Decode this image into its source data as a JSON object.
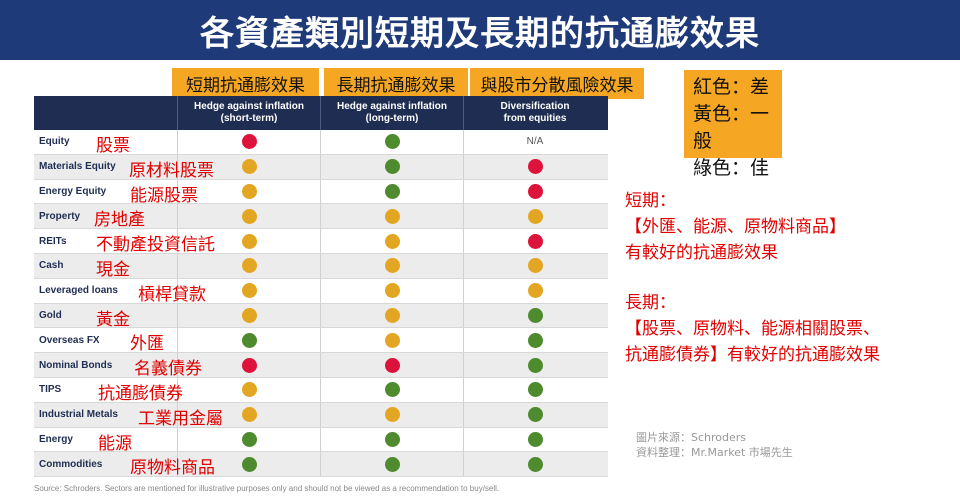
{
  "title": "各資產類別短期及長期的抗通膨效果",
  "top_labels": {
    "short": "短期抗通膨效果",
    "long": "長期抗通膨效果",
    "diversify": "與股市分散風險效果"
  },
  "legend": {
    "red": "紅色：差",
    "yellow": "黃色：一般",
    "green": "綠色：佳"
  },
  "colors": {
    "red": "#dc143c",
    "amber": "#e3a623",
    "green": "#4e8a2e",
    "header": "#1f2d52",
    "title_bg": "#1f3a78",
    "label_bg": "#f5a623"
  },
  "table": {
    "headers": [
      "",
      "Hedge against inflation (short-term)",
      "Hedge against inflation (long-term)",
      "Diversification from equities"
    ],
    "header_lines": [
      [
        "Hedge against inflation",
        "(short-term)"
      ],
      [
        "Hedge against inflation",
        "(long-term)"
      ],
      [
        "Diversification",
        "from equities"
      ]
    ],
    "rows": [
      {
        "en": "Equity",
        "zh": "股票",
        "short": "red",
        "long": "green",
        "div": "N/A"
      },
      {
        "en": "Materials Equity",
        "zh": "原材料股票",
        "short": "amber",
        "long": "green",
        "div": "red"
      },
      {
        "en": "Energy Equity",
        "zh": "能源股票",
        "short": "amber",
        "long": "green",
        "div": "red"
      },
      {
        "en": "Property",
        "zh": "房地產",
        "short": "amber",
        "long": "amber",
        "div": "amber"
      },
      {
        "en": "REITs",
        "zh": "不動產投資信託",
        "short": "amber",
        "long": "amber",
        "div": "red"
      },
      {
        "en": "Cash",
        "zh": "現金",
        "short": "amber",
        "long": "amber",
        "div": "amber"
      },
      {
        "en": "Leveraged loans",
        "zh": "槓桿貸款",
        "short": "amber",
        "long": "amber",
        "div": "amber"
      },
      {
        "en": "Gold",
        "zh": "黃金",
        "short": "amber",
        "long": "amber",
        "div": "green"
      },
      {
        "en": "Overseas FX",
        "zh": "外匯",
        "short": "green",
        "long": "amber",
        "div": "green"
      },
      {
        "en": "Nominal Bonds",
        "zh": "名義債券",
        "short": "red",
        "long": "red",
        "div": "green"
      },
      {
        "en": "TIPS",
        "zh": "抗通膨債券",
        "short": "amber",
        "long": "green",
        "div": "green"
      },
      {
        "en": "Industrial Metals",
        "zh": "工業用金屬",
        "short": "amber",
        "long": "amber",
        "div": "green"
      },
      {
        "en": "Energy",
        "zh": "能源",
        "short": "green",
        "long": "green",
        "div": "green"
      },
      {
        "en": "Commodities",
        "zh": "原物料商品",
        "short": "green",
        "long": "green",
        "div": "green"
      }
    ]
  },
  "source": "Source: Schroders. Sectors are mentioned for illustrative purposes only and should not be viewed as a recommendation to buy/sell.",
  "notes": {
    "short_head": "短期：",
    "short_line1": "【外匯、能源、原物料商品】",
    "short_line2": "有較好的抗通膨效果",
    "long_head": "長期：",
    "long_line1": "【股票、原物料、能源相關股票、",
    "long_line2": "抗通膨債券】有較好的抗通膨效果"
  },
  "credit": {
    "image_source": "圖片來源：Schroders",
    "compiled_by": "資料整理：Mr.Market  市場先生"
  }
}
